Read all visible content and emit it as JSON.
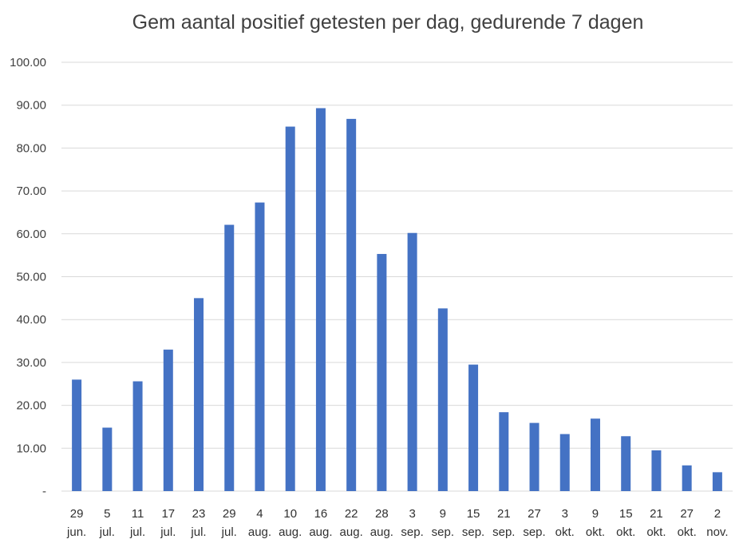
{
  "chart_data": {
    "type": "bar",
    "title": "Gem aantal positief getesten per dag, gedurende 7 dagen",
    "xlabel": "",
    "ylabel": "",
    "ylim": [
      0,
      100
    ],
    "grid": true,
    "yticks": [
      "-",
      "10.00",
      "20.00",
      "30.00",
      "40.00",
      "50.00",
      "60.00",
      "70.00",
      "80.00",
      "90.00",
      "100.00"
    ],
    "categories": [
      [
        "29",
        "jun."
      ],
      [
        "5",
        "jul."
      ],
      [
        "11",
        "jul."
      ],
      [
        "17",
        "jul."
      ],
      [
        "23",
        "jul."
      ],
      [
        "29",
        "jul."
      ],
      [
        "4",
        "aug."
      ],
      [
        "10",
        "aug."
      ],
      [
        "16",
        "aug."
      ],
      [
        "22",
        "aug."
      ],
      [
        "28",
        "aug."
      ],
      [
        "3",
        "sep."
      ],
      [
        "9",
        "sep."
      ],
      [
        "15",
        "sep."
      ],
      [
        "21",
        "sep."
      ],
      [
        "27",
        "sep."
      ],
      [
        "3",
        "okt."
      ],
      [
        "9",
        "okt."
      ],
      [
        "15",
        "okt."
      ],
      [
        "21",
        "okt."
      ],
      [
        "27",
        "okt."
      ],
      [
        "2",
        "nov."
      ]
    ],
    "values": [
      26.0,
      14.8,
      25.6,
      33.0,
      45.0,
      62.1,
      67.3,
      85.0,
      89.3,
      86.8,
      55.3,
      60.2,
      42.6,
      29.5,
      18.4,
      15.9,
      13.3,
      16.9,
      12.8,
      9.5,
      6.0,
      4.4
    ],
    "bar_color": "#4472C4",
    "grid_color": "#D9D9D9"
  }
}
